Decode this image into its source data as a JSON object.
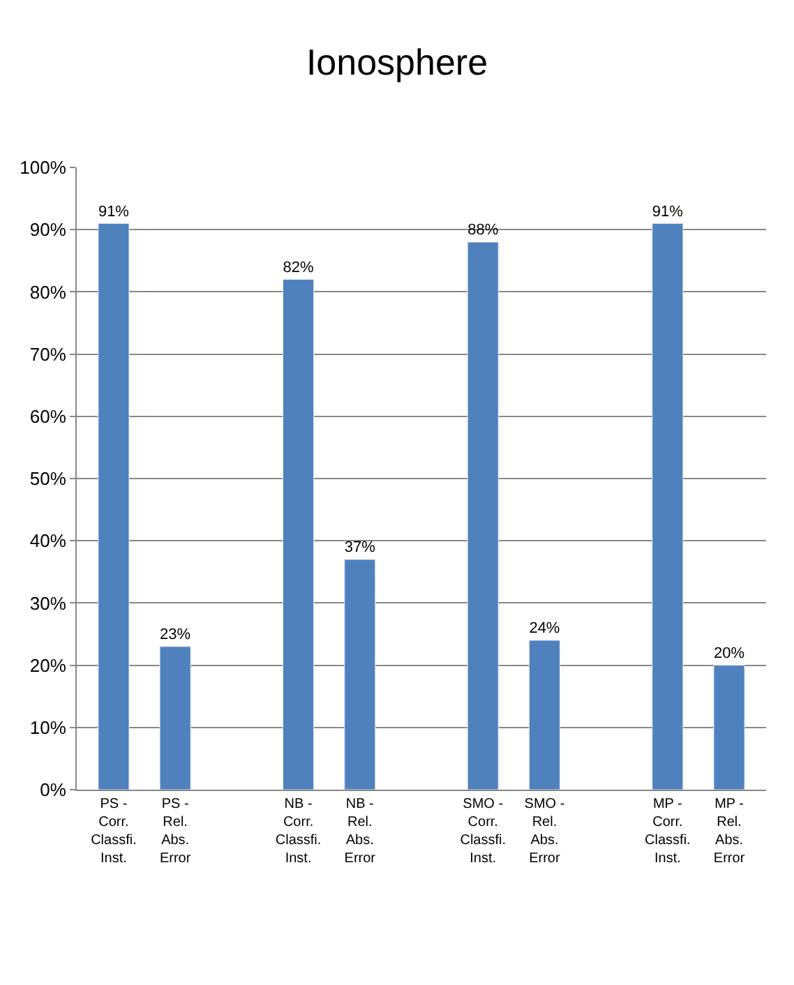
{
  "chart_data": {
    "type": "bar",
    "title": "Ionosphere",
    "categories": [
      "PS - Corr. Classfi. Inst.",
      "PS - Rel. Abs. Error",
      null,
      "NB - Corr. Classfi. Inst.",
      "NB - Rel. Abs. Error",
      null,
      "SMO - Corr. Classfi. Inst.",
      "SMO - Rel. Abs. Error",
      null,
      "MP - Corr. Classfi. Inst.",
      "MP - Rel. Abs. Error"
    ],
    "values": [
      91,
      23,
      null,
      82,
      37,
      null,
      88,
      24,
      null,
      91,
      20
    ],
    "value_labels": [
      "91%",
      "23%",
      null,
      "82%",
      "37%",
      null,
      "88%",
      "24%",
      null,
      "91%",
      "20%"
    ],
    "color": "#4f81bd",
    "ylim": [
      0,
      100
    ],
    "yticks": [
      {
        "value": 0,
        "label": "0%"
      },
      {
        "value": 10,
        "label": "10%"
      },
      {
        "value": 20,
        "label": "20%"
      },
      {
        "value": 30,
        "label": "30%"
      },
      {
        "value": 40,
        "label": "40%"
      },
      {
        "value": 50,
        "label": "50%"
      },
      {
        "value": 60,
        "label": "60%"
      },
      {
        "value": 70,
        "label": "70%"
      },
      {
        "value": 80,
        "label": "80%"
      },
      {
        "value": 90,
        "label": "90%"
      },
      {
        "value": 100,
        "label": "100%"
      }
    ],
    "grid": "y",
    "legend": false
  }
}
